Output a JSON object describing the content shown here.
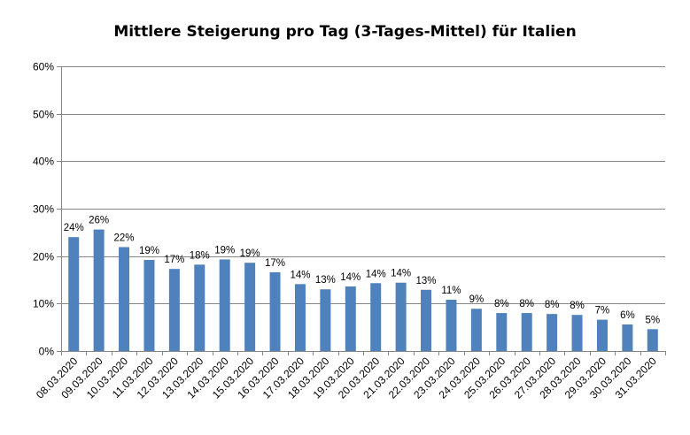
{
  "chart_data": {
    "type": "bar",
    "title": "Mittlere Steigerung pro Tag (3-Tages-Mittel) für Italien",
    "xlabel": "",
    "ylabel": "",
    "categories": [
      "08.03.2020",
      "09.03.2020",
      "10.03.2020",
      "11.03.2020",
      "12.03.2020",
      "13.03.2020",
      "14.03.2020",
      "15.03.2020",
      "16.03.2020",
      "17.03.2020",
      "18.03.2020",
      "19.03.2020",
      "20.03.2020",
      "21.03.2020",
      "22.03.2020",
      "23.03.2020",
      "24.03.2020",
      "25.03.2020",
      "26.03.2020",
      "27.03.2020",
      "28.03.2020",
      "29.03.2020",
      "30.03.2020",
      "31.03.2020"
    ],
    "values": [
      24.0,
      25.6,
      21.9,
      19.2,
      17.3,
      18.2,
      19.3,
      18.6,
      16.6,
      14.1,
      13.0,
      13.6,
      14.3,
      14.4,
      12.9,
      10.8,
      8.9,
      8.0,
      8.0,
      7.8,
      7.6,
      6.6,
      5.6,
      4.6
    ],
    "data_labels": [
      "24%",
      "26%",
      "22%",
      "19%",
      "17%",
      "18%",
      "19%",
      "19%",
      "17%",
      "14%",
      "13%",
      "14%",
      "14%",
      "14%",
      "13%",
      "11%",
      "9%",
      "8%",
      "8%",
      "8%",
      "8%",
      "7%",
      "6%",
      "5%"
    ],
    "y_ticks": [
      "0%",
      "10%",
      "20%",
      "30%",
      "40%",
      "50%",
      "60%"
    ],
    "ylim": [
      0,
      60
    ],
    "grid": true,
    "legend": "none",
    "colors": {
      "bar": "#4F81BD",
      "grid": "#868686",
      "axis": "#868686"
    }
  }
}
